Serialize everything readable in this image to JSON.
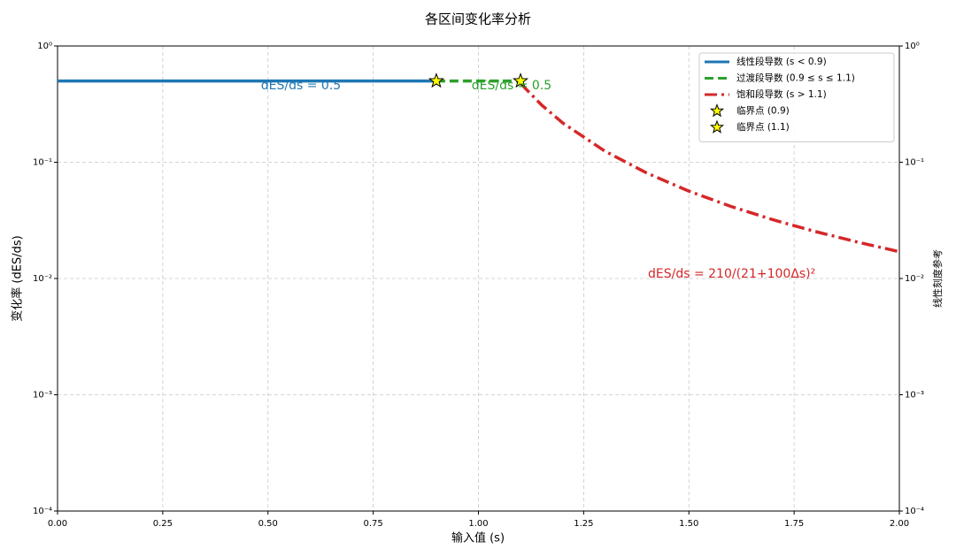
{
  "chart_data": {
    "type": "line",
    "title": "各区间变化率分析",
    "x_label": "输入值 (s)",
    "y_label": "变化率 (dES/ds)",
    "y2_label": "线性刻度参考",
    "xlim": [
      0,
      2
    ],
    "xticks": [
      {
        "value": 0,
        "label": "0.00"
      },
      {
        "value": 0.25,
        "label": "0.25"
      },
      {
        "value": 0.5,
        "label": "0.50"
      },
      {
        "value": 0.75,
        "label": "0.75"
      },
      {
        "value": 1,
        "label": "1.00"
      },
      {
        "value": 1.25,
        "label": "1.25"
      },
      {
        "value": 1.5,
        "label": "1.50"
      },
      {
        "value": 1.75,
        "label": "1.75"
      },
      {
        "value": 2,
        "label": "2.00"
      }
    ],
    "ylim": [
      0.0001,
      1
    ],
    "y_scale": "log",
    "yticks": [
      {
        "value": 1,
        "label": "10⁰"
      },
      {
        "value": 0.1,
        "label": "10⁻¹"
      },
      {
        "value": 0.01,
        "label": "10⁻²"
      },
      {
        "value": 0.001,
        "label": "10⁻³"
      },
      {
        "value": 0.0001,
        "label": "10⁻⁴"
      }
    ],
    "grid": true,
    "legend_position": "upper right",
    "series": [
      {
        "name": "线性段导数 (s < 0.9)",
        "color": "#1f77b4",
        "style": "solid",
        "x": [
          0,
          0.9
        ],
        "values": [
          0.5,
          0.5
        ]
      },
      {
        "name": "过渡段导数 (0.9 ≤ s ≤ 1.1)",
        "color": "#2ca02c",
        "style": "dashed",
        "x": [
          0.9,
          1.1
        ],
        "values": [
          0.5,
          0.5
        ]
      },
      {
        "name": "饱和段导数 (s > 1.1)",
        "color": "#d62728",
        "style": "dashdot",
        "x": [
          1.1,
          1.15,
          1.2,
          1.3,
          1.4,
          1.5,
          1.6,
          1.7,
          1.8,
          1.9,
          2.0
        ],
        "values": [
          0.476,
          0.311,
          0.218,
          0.125,
          0.0807,
          0.0564,
          0.0417,
          0.032,
          0.0254,
          0.0206,
          0.017
        ]
      },
      {
        "name": "临界点 (0.9)",
        "color": "#ffff00",
        "marker": "star",
        "x": [
          0.9
        ],
        "values": [
          0.5
        ]
      },
      {
        "name": "临界点 (1.1)",
        "color": "#ffff00",
        "marker": "star",
        "x": [
          1.1
        ],
        "values": [
          0.5
        ]
      }
    ],
    "annotations": [
      {
        "text": "dES/ds = 0.5",
        "color": "#1f77b4"
      },
      {
        "text": "dES/ds = 0.5",
        "color": "#2ca02c"
      },
      {
        "text": "dES/ds = 210/(21+100Δs)²",
        "color": "#d62728"
      }
    ]
  }
}
